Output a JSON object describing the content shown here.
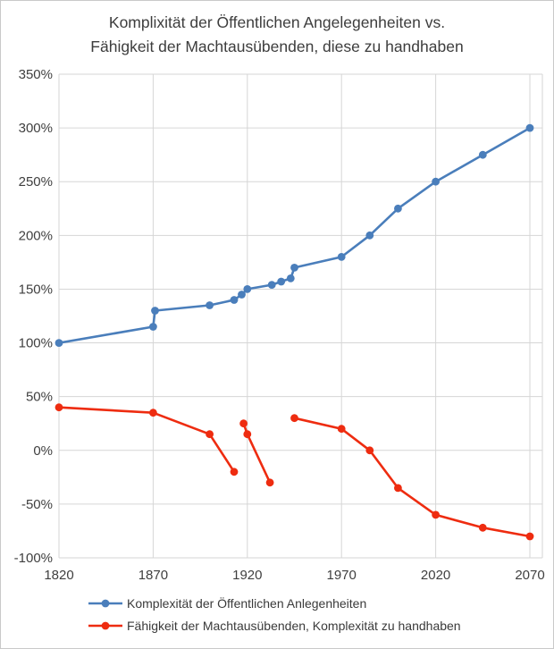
{
  "title": {
    "line1": "Komplixität der Öffentlichen Angelegenheiten vs.",
    "line2": "Fähigkeit der Machtausübenden, diese zu handhaben"
  },
  "chart_data": {
    "type": "line",
    "title": "Komplixität der Öffentlichen Angelegenheiten vs. Fähigkeit der Machtausübenden, diese zu handhaben",
    "xlabel": "",
    "ylabel": "",
    "xlim": [
      1820,
      2070
    ],
    "ylim": [
      -100,
      350
    ],
    "x_ticks": [
      1820,
      1870,
      1920,
      1970,
      2020,
      2070
    ],
    "y_ticks": [
      350,
      300,
      250,
      200,
      150,
      100,
      50,
      0,
      -50,
      -100
    ],
    "y_tick_suffix": "%",
    "grid": true,
    "legend_position": "bottom-left",
    "series": [
      {
        "name": "Komplexität der Öffentlichen Anlegenheiten",
        "color": "#4a7ebb",
        "marker": "circle",
        "segments": [
          [
            [
              1820,
              100
            ],
            [
              1870,
              115
            ],
            [
              1871,
              130
            ],
            [
              1900,
              135
            ],
            [
              1913,
              140
            ],
            [
              1917,
              145
            ],
            [
              1920,
              150
            ],
            [
              1933,
              154
            ],
            [
              1938,
              157
            ],
            [
              1943,
              160
            ],
            [
              1945,
              170
            ],
            [
              1970,
              180
            ],
            [
              1985,
              200
            ],
            [
              2000,
              225
            ],
            [
              2020,
              250
            ],
            [
              2045,
              275
            ],
            [
              2070,
              300
            ]
          ]
        ]
      },
      {
        "name": "Fähigkeit der Machtausübenden, Komplexität zu handhaben",
        "color": "#ee2c10",
        "marker": "circle",
        "segments": [
          [
            [
              1820,
              40
            ],
            [
              1870,
              35
            ],
            [
              1900,
              15
            ],
            [
              1913,
              -20
            ]
          ],
          [
            [
              1918,
              25
            ],
            [
              1920,
              15
            ],
            [
              1932,
              -30
            ]
          ],
          [
            [
              1945,
              30
            ],
            [
              1970,
              20
            ],
            [
              1985,
              0
            ],
            [
              2000,
              -35
            ],
            [
              2020,
              -60
            ],
            [
              2045,
              -72
            ],
            [
              2070,
              -80
            ]
          ]
        ]
      }
    ]
  },
  "colors": {
    "grid": "#d6d6d6",
    "axis_text": "#3f3f3f",
    "background": "#ffffff",
    "frame": "#c9c9c9"
  }
}
